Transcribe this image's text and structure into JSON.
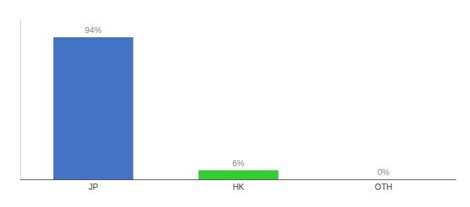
{
  "chart_data": {
    "type": "bar",
    "categories": [
      "JP",
      "HK",
      "OTH"
    ],
    "values": [
      94,
      6,
      0
    ],
    "value_labels": [
      "94%",
      "6%",
      "0%"
    ],
    "data_labels": true,
    "colors": [
      "#4472c4",
      "#33cc33",
      "#4472c4"
    ],
    "ylim": [
      0,
      105
    ],
    "grid": false,
    "tick_labels": "x"
  }
}
